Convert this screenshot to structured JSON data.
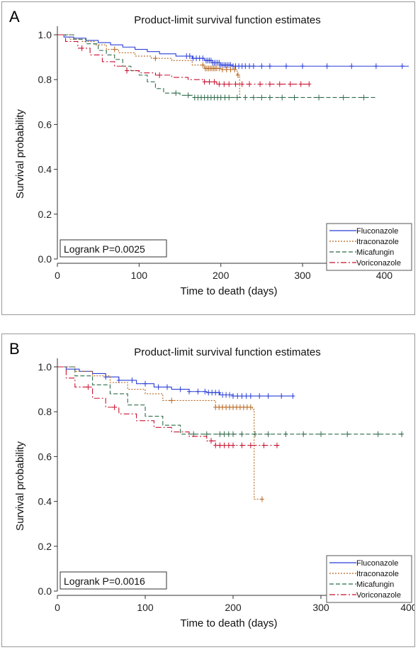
{
  "chart_data": [
    {
      "panel_label": "A",
      "type": "line",
      "title": "Product-limit survival function estimates",
      "xlabel": "Time to death (days)",
      "ylabel": "Survival probability",
      "xlim": [
        0,
        430
      ],
      "ylim": [
        0,
        1.0
      ],
      "x_ticks": [
        0,
        100,
        200,
        300,
        400
      ],
      "y_ticks": [
        0.0,
        0.2,
        0.4,
        0.6,
        0.8,
        1.0
      ],
      "annotation": "Logrank P=0.0025",
      "legend_position": "bottom-right",
      "series": [
        {
          "name": "Fluconazole",
          "color": "#2b3fd6",
          "dash": "",
          "steps": [
            [
              0,
              1.0
            ],
            [
              8,
              0.99
            ],
            [
              20,
              0.985
            ],
            [
              35,
              0.975
            ],
            [
              50,
              0.965
            ],
            [
              65,
              0.955
            ],
            [
              80,
              0.945
            ],
            [
              95,
              0.935
            ],
            [
              110,
              0.925
            ],
            [
              125,
              0.915
            ],
            [
              145,
              0.905
            ],
            [
              165,
              0.895
            ],
            [
              180,
              0.885
            ],
            [
              190,
              0.875
            ],
            [
              200,
              0.865
            ],
            [
              215,
              0.86
            ],
            [
              430,
              0.86
            ]
          ],
          "censored": [
            158,
            162,
            166,
            170,
            174,
            178,
            182,
            184,
            186,
            188,
            190,
            192,
            194,
            196,
            198,
            200,
            202,
            204,
            206,
            208,
            210,
            212,
            215,
            218,
            222,
            226,
            230,
            235,
            240,
            250,
            260,
            280,
            300,
            330,
            360,
            390,
            422
          ]
        },
        {
          "name": "Itraconazole",
          "color": "#b5651d",
          "dash": "2,2",
          "steps": [
            [
              0,
              1.0
            ],
            [
              15,
              0.98
            ],
            [
              30,
              0.97
            ],
            [
              45,
              0.955
            ],
            [
              60,
              0.935
            ],
            [
              75,
              0.92
            ],
            [
              95,
              0.905
            ],
            [
              115,
              0.895
            ],
            [
              140,
              0.885
            ],
            [
              165,
              0.865
            ],
            [
              180,
              0.85
            ],
            [
              200,
              0.845
            ],
            [
              220,
              0.82
            ],
            [
              223,
              0.72
            ]
          ],
          "censored": [
            70,
            120,
            178,
            181,
            183,
            185,
            187,
            189,
            191,
            193,
            195,
            198,
            202,
            207,
            212,
            217,
            221
          ]
        },
        {
          "name": "Micafungin",
          "color": "#2f6b4a",
          "dash": "6,3",
          "steps": [
            [
              0,
              1.0
            ],
            [
              20,
              0.98
            ],
            [
              35,
              0.96
            ],
            [
              50,
              0.93
            ],
            [
              60,
              0.91
            ],
            [
              70,
              0.89
            ],
            [
              80,
              0.86
            ],
            [
              90,
              0.84
            ],
            [
              100,
              0.82
            ],
            [
              110,
              0.79
            ],
            [
              120,
              0.76
            ],
            [
              130,
              0.74
            ],
            [
              150,
              0.73
            ],
            [
              165,
              0.72
            ],
            [
              390,
              0.72
            ]
          ],
          "censored": [
            145,
            160,
            168,
            172,
            176,
            180,
            184,
            188,
            192,
            196,
            200,
            205,
            210,
            220,
            230,
            240,
            250,
            260,
            275,
            290,
            320,
            350,
            375
          ]
        },
        {
          "name": "Voriconazole",
          "color": "#c8102e",
          "dash": "8,3,2,3",
          "steps": [
            [
              0,
              1.0
            ],
            [
              10,
              0.97
            ],
            [
              25,
              0.94
            ],
            [
              40,
              0.91
            ],
            [
              55,
              0.88
            ],
            [
              70,
              0.86
            ],
            [
              85,
              0.84
            ],
            [
              100,
              0.83
            ],
            [
              120,
              0.82
            ],
            [
              140,
              0.81
            ],
            [
              160,
              0.8
            ],
            [
              180,
              0.79
            ],
            [
              195,
              0.78
            ],
            [
              310,
              0.78
            ]
          ],
          "censored": [
            30,
            85,
            125,
            180,
            186,
            192,
            198,
            204,
            210,
            218,
            226,
            235,
            248,
            260,
            272,
            285,
            298,
            308
          ]
        }
      ]
    },
    {
      "panel_label": "B",
      "type": "line",
      "title": "Product-limit survival function estimates",
      "xlabel": "Time to death (days)",
      "ylabel": "Survival probability",
      "xlim": [
        0,
        400
      ],
      "ylim": [
        0,
        1.0
      ],
      "x_ticks": [
        0,
        100,
        200,
        300,
        400
      ],
      "y_ticks": [
        0.0,
        0.2,
        0.4,
        0.6,
        0.8,
        1.0
      ],
      "annotation": "Logrank P=0.0016",
      "legend_position": "bottom-right",
      "series": [
        {
          "name": "Fluconazole",
          "color": "#2b3fd6",
          "dash": "",
          "steps": [
            [
              0,
              1.0
            ],
            [
              10,
              0.99
            ],
            [
              25,
              0.98
            ],
            [
              40,
              0.97
            ],
            [
              55,
              0.955
            ],
            [
              70,
              0.94
            ],
            [
              90,
              0.925
            ],
            [
              110,
              0.91
            ],
            [
              130,
              0.9
            ],
            [
              150,
              0.89
            ],
            [
              170,
              0.885
            ],
            [
              185,
              0.875
            ],
            [
              200,
              0.87
            ],
            [
              270,
              0.87
            ]
          ],
          "censored": [
            55,
            70,
            85,
            100,
            115,
            125,
            140,
            150,
            160,
            168,
            172,
            176,
            180,
            184,
            188,
            192,
            196,
            200,
            205,
            210,
            215,
            220,
            230,
            240,
            255,
            268
          ]
        },
        {
          "name": "Itraconazole",
          "color": "#b5651d",
          "dash": "2,2",
          "steps": [
            [
              0,
              1.0
            ],
            [
              20,
              0.98
            ],
            [
              40,
              0.96
            ],
            [
              60,
              0.93
            ],
            [
              80,
              0.9
            ],
            [
              100,
              0.88
            ],
            [
              120,
              0.85
            ],
            [
              180,
              0.82
            ],
            [
              222,
              0.81
            ],
            [
              224,
              0.41
            ],
            [
              233,
              0.41
            ]
          ],
          "censored": [
            130,
            180,
            184,
            188,
            192,
            196,
            200,
            204,
            208,
            212,
            216,
            220,
            233
          ]
        },
        {
          "name": "Micafungin",
          "color": "#2f6b4a",
          "dash": "6,3",
          "steps": [
            [
              0,
              1.0
            ],
            [
              20,
              0.96
            ],
            [
              40,
              0.92
            ],
            [
              60,
              0.88
            ],
            [
              80,
              0.83
            ],
            [
              100,
              0.78
            ],
            [
              120,
              0.74
            ],
            [
              140,
              0.7
            ],
            [
              395,
              0.7
            ]
          ],
          "censored": [
            155,
            170,
            185,
            190,
            195,
            200,
            210,
            225,
            240,
            260,
            280,
            300,
            330,
            365,
            392
          ]
        },
        {
          "name": "Voriconazole",
          "color": "#c8102e",
          "dash": "8,3,2,3",
          "steps": [
            [
              0,
              1.0
            ],
            [
              10,
              0.95
            ],
            [
              20,
              0.91
            ],
            [
              40,
              0.86
            ],
            [
              55,
              0.82
            ],
            [
              70,
              0.79
            ],
            [
              90,
              0.76
            ],
            [
              110,
              0.73
            ],
            [
              130,
              0.71
            ],
            [
              150,
              0.69
            ],
            [
              170,
              0.67
            ],
            [
              180,
              0.65
            ],
            [
              255,
              0.65
            ]
          ],
          "censored": [
            35,
            65,
            175,
            180,
            185,
            190,
            195,
            200,
            210,
            220,
            235,
            250
          ]
        }
      ]
    }
  ]
}
